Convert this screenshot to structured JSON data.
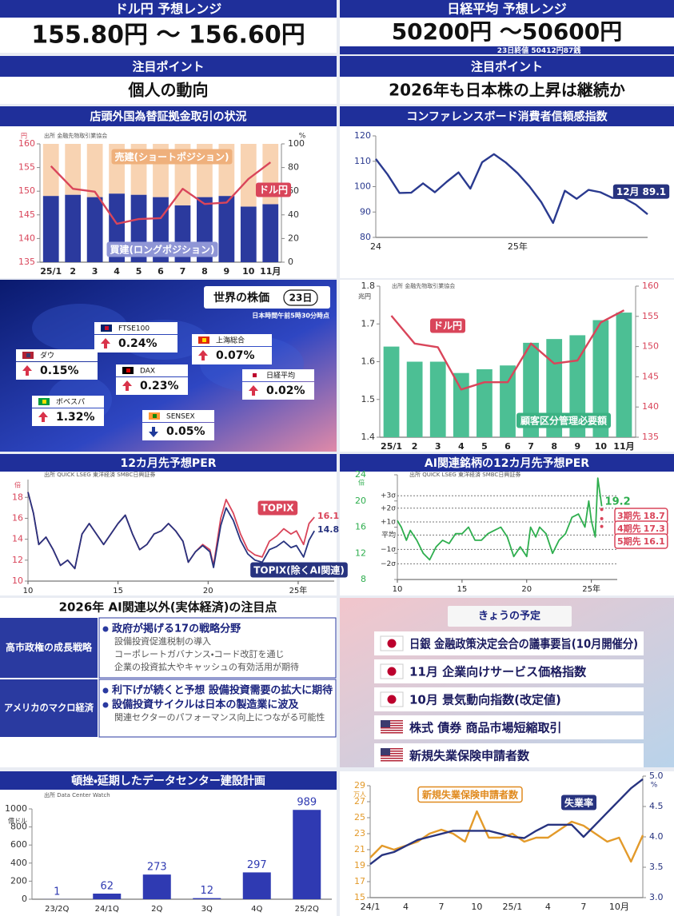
{
  "forecast_panels": [
    {
      "title": "ドル円 予想レンジ",
      "range": "155.80円 ～ 156.60円"
    },
    {
      "title": "日経平均 予想レンジ",
      "range": "50200円 ～50600円",
      "note": "23日終値 50412円87銭"
    }
  ],
  "focus_panels": [
    {
      "title": "注目ポイント",
      "text": "個人の動向"
    },
    {
      "title": "注目ポイント",
      "text": "2026年も日本株の上昇は継続か"
    }
  ],
  "world_stocks": {
    "title": "世界の株価",
    "date": "23日",
    "note": "日本時間午前5時30分時点",
    "items": [
      {
        "name": "ダウ",
        "change": "0.15%",
        "direction": "up"
      },
      {
        "name": "FTSE100",
        "change": "0.24%",
        "direction": "up"
      },
      {
        "name": "上海総合",
        "change": "0.07%",
        "direction": "up"
      },
      {
        "name": "DAX",
        "change": "0.23%",
        "direction": "up"
      },
      {
        "name": "日経平均",
        "change": "0.02%",
        "direction": "up"
      },
      {
        "name": "ボベスパ",
        "change": "1.32%",
        "direction": "up"
      },
      {
        "name": "SENSEX",
        "change": "0.05%",
        "direction": "down"
      }
    ]
  },
  "outlook": {
    "title": "2026年 AI関連以外(実体経済)の注目点",
    "rows": [
      {
        "label": "高市政権の成長戦略",
        "points": [
          {
            "text": "政府が掲げる17の戦略分野",
            "details": [
              "設備投資促進税制の導入",
              "コーポレートガバナンス・コード改訂を通じ",
              "企業の投資拡大やキャッシュの有効活用が期待"
            ]
          }
        ]
      },
      {
        "label": "アメリカのマクロ経済",
        "points": [
          {
            "text": "利下げが続くと予想 設備投資需要の拡大に期待"
          },
          {
            "text": "設備投資サイクルは日本の製造業に波及",
            "details": [
              "関連セクターのパフォーマンス向上につながる可能性"
            ]
          }
        ]
      }
    ]
  },
  "schedule": {
    "title": "きょうの予定",
    "items": [
      {
        "country": "jp",
        "text": "日銀 金融政策決定会合の議事要旨(10月開催分)"
      },
      {
        "country": "jp",
        "text": "11月 企業向けサービス価格指数"
      },
      {
        "country": "jp",
        "text": "10月 景気動向指数(改定値)"
      },
      {
        "country": "us",
        "text": "株式 債券 商品市場短縮取引"
      },
      {
        "country": "us",
        "text": "新規失業保険申請者数"
      }
    ]
  },
  "chart_data": [
    {
      "type": "combo",
      "title": "店頭外国為替証拠金取引の状況",
      "source": "出所 金融先物取引業協会",
      "ylabel": "円",
      "y2label": "%",
      "categories": [
        "25/1",
        "2",
        "3",
        "4",
        "5",
        "6",
        "7",
        "8",
        "9",
        "10",
        "11月"
      ],
      "stacked": true,
      "series": [
        {
          "name": "買建(ロングポジション)",
          "kind": "bar",
          "axis": "y2",
          "color": "#2b3a9e",
          "values": [
            56,
            57,
            55,
            58,
            57,
            55,
            48,
            55,
            56,
            47,
            49
          ]
        },
        {
          "name": "売建(ショートポジション)",
          "kind": "bar",
          "axis": "y2",
          "color": "#f8d3b2",
          "values": [
            44,
            43,
            45,
            42,
            43,
            45,
            52,
            45,
            44,
            53,
            51
          ]
        },
        {
          "name": "ドル円",
          "kind": "line",
          "color": "#d9455a",
          "values": [
            155.3,
            150.5,
            149.9,
            143.1,
            144.1,
            144.3,
            150.5,
            147.3,
            147.6,
            152.6,
            156.1
          ]
        }
      ],
      "ylim": [
        135,
        160
      ],
      "yticks": [
        135,
        140,
        145,
        150,
        155,
        160
      ],
      "y2lim": [
        0,
        100
      ],
      "y2ticks": [
        0,
        20,
        40,
        60,
        80,
        100
      ]
    },
    {
      "type": "line",
      "title": "コンファレンスボード消費者信頼感指数",
      "categories": [
        "24",
        null,
        null,
        null,
        null,
        null,
        null,
        null,
        null,
        null,
        null,
        null,
        "25年",
        null,
        null,
        null,
        null,
        null,
        null,
        null,
        null,
        null,
        null,
        null
      ],
      "series": [
        {
          "kind": "line",
          "color": "#2a3a8f",
          "values": [
            110.9,
            104.8,
            97.5,
            97.6,
            101.3,
            97.8,
            101.9,
            105.6,
            99.2,
            109.6,
            112.8,
            109.5,
            105.3,
            100.1,
            93.9,
            85.7,
            98.4,
            95.2,
            98.7,
            97.8,
            95.6,
            95.5,
            92.9,
            89.1
          ]
        }
      ],
      "annotation": "12月",
      "ylim": [
        80,
        120
      ],
      "yticks": [
        80,
        90,
        100,
        110,
        120
      ]
    },
    {
      "type": "combo",
      "source": "出所 金融先物取引業協会",
      "ylabel": "兆円",
      "categories": [
        "25/1",
        "2",
        "3",
        "4",
        "5",
        "6",
        "7",
        "8",
        "9",
        "10",
        "11月"
      ],
      "series": [
        {
          "name": "顧客区分管理必要額",
          "kind": "bar",
          "color": "#4cbf94",
          "values": [
            1.64,
            1.6,
            1.6,
            1.57,
            1.58,
            1.59,
            1.65,
            1.66,
            1.67,
            1.71,
            1.73
          ]
        },
        {
          "name": "ドル円",
          "kind": "line",
          "axis": "y2",
          "color": "#d9455a",
          "values": [
            155.1,
            150.5,
            149.9,
            142.9,
            144.1,
            144.1,
            150.5,
            147.2,
            147.7,
            154.0,
            156.0
          ]
        }
      ],
      "ylim": [
        1.4,
        1.8
      ],
      "yticks": [
        1.4,
        1.5,
        1.6,
        1.7,
        1.8
      ],
      "y2lim": [
        135,
        160
      ],
      "y2ticks": [
        135,
        140,
        145,
        150,
        155,
        160
      ]
    },
    {
      "type": "line",
      "title": "12カ月先予想PER",
      "source": "出所 QUICK LSEG 東洋経済 SMBC日興証券",
      "ylabel": "倍",
      "x": [
        2010.0,
        2010.3,
        2010.6,
        2011.0,
        2011.4,
        2011.8,
        2012.2,
        2012.6,
        2013.0,
        2013.4,
        2013.8,
        2014.2,
        2014.6,
        2015.0,
        2015.4,
        2015.8,
        2016.2,
        2016.6,
        2017.0,
        2017.4,
        2017.8,
        2018.2,
        2018.6,
        2018.9,
        2019.3,
        2019.7,
        2020.1,
        2020.3,
        2020.7,
        2021.0,
        2021.4,
        2021.8,
        2022.2,
        2022.6,
        2023.0,
        2023.4,
        2023.8,
        2024.2,
        2024.6,
        2024.9,
        2025.3,
        2025.6,
        2025.9
      ],
      "series": [
        {
          "name": "TOPIX",
          "kind": "line",
          "color": "#d9455a",
          "values": [
            18.5,
            16.5,
            13.5,
            14.2,
            13.0,
            11.5,
            12.0,
            11.2,
            14.5,
            15.5,
            14.5,
            13.5,
            14.5,
            15.5,
            16.3,
            14.5,
            13.0,
            13.5,
            14.5,
            14.8,
            15.5,
            14.8,
            13.8,
            11.8,
            12.8,
            13.5,
            13.0,
            11.5,
            16.0,
            17.8,
            16.5,
            14.5,
            13.0,
            12.5,
            12.3,
            13.8,
            14.3,
            15.0,
            14.5,
            14.8,
            13.5,
            15.5,
            16.1
          ]
        },
        {
          "name": "TOPIX(除くAI関連)",
          "kind": "line",
          "color": "#27337f",
          "values": [
            18.5,
            16.5,
            13.5,
            14.2,
            13.0,
            11.5,
            12.0,
            11.2,
            14.5,
            15.5,
            14.5,
            13.5,
            14.5,
            15.5,
            16.3,
            14.5,
            13.0,
            13.5,
            14.5,
            14.8,
            15.5,
            14.8,
            13.8,
            11.8,
            12.8,
            13.4,
            12.8,
            11.3,
            15.3,
            17.0,
            15.8,
            13.9,
            12.6,
            12.0,
            11.8,
            13.0,
            13.3,
            13.8,
            13.2,
            13.4,
            12.3,
            13.9,
            14.8
          ]
        }
      ],
      "xlim": [
        2010,
        2027
      ],
      "xticks": [
        {
          "value": 2010,
          "label": "10"
        },
        {
          "value": 2015,
          "label": "15"
        },
        {
          "value": 2020,
          "label": "20"
        },
        {
          "value": 2025,
          "label": "25年"
        }
      ],
      "ylim": [
        10,
        19.7
      ],
      "yticks": [
        10,
        12,
        14,
        16,
        18
      ]
    },
    {
      "type": "line",
      "title": "AI関連銘柄の12カ月先予想PER",
      "source": "出所 QUICK LSEG 東洋経済 SMBC日興証券",
      "ylabel": "倍",
      "x": [
        2010.0,
        2010.3,
        2010.7,
        2011.0,
        2011.5,
        2012.0,
        2012.5,
        2013.0,
        2013.5,
        2014.0,
        2014.5,
        2015.0,
        2015.5,
        2016.0,
        2016.5,
        2017.0,
        2017.5,
        2018.0,
        2018.5,
        2019.0,
        2019.5,
        2020.0,
        2020.3,
        2020.7,
        2021.0,
        2021.5,
        2022.0,
        2022.5,
        2023.0,
        2023.5,
        2024.0,
        2024.5,
        2024.8,
        2025.0,
        2025.3,
        2025.5,
        2025.8
      ],
      "series": [
        {
          "kind": "line",
          "color": "#2eae4e",
          "values": [
            17,
            16,
            14,
            15.5,
            14,
            12,
            11,
            13,
            14,
            13.5,
            15,
            15,
            16,
            14,
            14,
            15,
            15.5,
            16,
            14.5,
            11.5,
            13,
            11.5,
            16,
            14.5,
            16,
            15,
            12,
            14,
            15,
            17.5,
            18,
            16,
            20,
            17,
            14.5,
            23.5,
            19.2
          ]
        }
      ],
      "bands": [
        {
          "label": "+3σ",
          "value": 20.8
        },
        {
          "label": "+2σ",
          "value": 18.9
        },
        {
          "label": "+1σ",
          "value": 16.8
        },
        {
          "label": "平均",
          "value": 14.8
        },
        {
          "label": "−1σ",
          "value": 12.6
        },
        {
          "label": "−2σ",
          "value": 10.4
        }
      ],
      "forecasts": [
        {
          "name": "3期先",
          "value": 18.7
        },
        {
          "name": "4期先",
          "value": 17.3
        },
        {
          "name": "5期先",
          "value": 16.1
        }
      ],
      "xlim": [
        2010,
        2027
      ],
      "xticks": [
        {
          "value": 2010,
          "label": "10"
        },
        {
          "value": 2015,
          "label": "15"
        },
        {
          "value": 2020,
          "label": "20"
        },
        {
          "value": 2025,
          "label": "25年"
        }
      ],
      "ylim": [
        8,
        24
      ],
      "yticks": [
        8,
        12,
        16,
        20,
        24
      ]
    },
    {
      "type": "bar",
      "title": "頓挫・延期したデータセンター建設計画",
      "source": "出所 Data Center Watch",
      "ylabel": "億ドル",
      "categories": [
        "23/2Q",
        "24/1Q",
        "2Q",
        "3Q",
        "4Q",
        "25/2Q"
      ],
      "series": [
        {
          "kind": "bar",
          "color": "#2f3ab2",
          "values": [
            1,
            62,
            273,
            12,
            297,
            989
          ]
        }
      ],
      "ylim": [
        0,
        1000
      ],
      "yticks": [
        0,
        200,
        400,
        600,
        800,
        1000
      ]
    },
    {
      "type": "line",
      "ylabel": "万人",
      "y2label": "%",
      "categories": [
        "24/1",
        null,
        null,
        "4",
        null,
        null,
        "7",
        null,
        null,
        "10",
        null,
        null,
        "25/1",
        null,
        null,
        "4",
        null,
        null,
        "7",
        null,
        null,
        "10月",
        null,
        null
      ],
      "series": [
        {
          "name": "新規失業保険申請者数",
          "kind": "line",
          "color": "#e39a2a",
          "values": [
            20,
            21.5,
            21,
            21.5,
            22,
            23,
            23.5,
            23,
            22,
            25.8,
            22.5,
            22.5,
            23,
            22,
            22.5,
            22.5,
            23.5,
            24.5,
            24,
            23,
            22,
            22.5,
            19.5,
            22.8
          ]
        },
        {
          "name": "失業率",
          "kind": "line",
          "axis": "y2",
          "color": "#27337f",
          "values": [
            3.55,
            3.7,
            3.75,
            3.85,
            3.95,
            4.0,
            4.05,
            4.1,
            4.1,
            4.1,
            4.1,
            4.05,
            4.0,
            3.98,
            4.1,
            4.2,
            4.2,
            4.2,
            4.0,
            4.2,
            4.4,
            4.6,
            4.8,
            4.95
          ]
        }
      ],
      "ylim": [
        15,
        29
      ],
      "yticks": [
        15,
        17,
        19,
        21,
        23,
        25,
        27,
        29
      ],
      "y2lim": [
        3,
        5
      ],
      "y2ticks": [
        {
          "value": 3,
          "label": "3.0"
        },
        3.5,
        {
          "value": 4,
          "label": "4.0"
        },
        4.5,
        {
          "value": 5,
          "label": "5.0"
        }
      ]
    }
  ]
}
